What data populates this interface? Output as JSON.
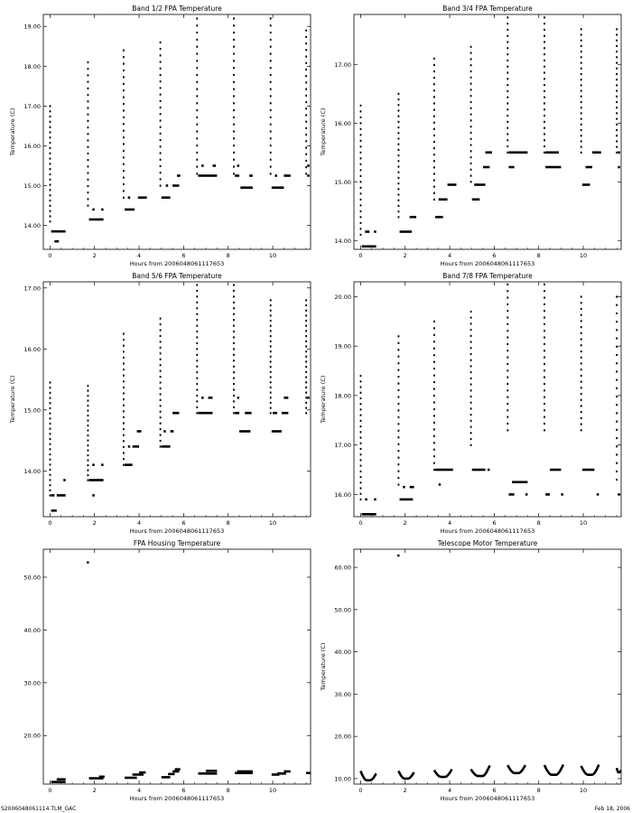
{
  "footer": {
    "left": "S2006048061114.TLM_GAC",
    "right": "Feb 18, 2006"
  },
  "chart_data": [
    {
      "type": "scatter",
      "title": "Band 1/2 FPA Temperature",
      "xlabel": "Hours from 2006048061117653",
      "ylabel": "Temperature (C)",
      "xlim": [
        -0.3,
        11.7
      ],
      "ylim": [
        13.4,
        19.3
      ],
      "xticks": [
        0,
        2,
        4,
        6,
        8,
        10
      ],
      "yticks": [
        14.0,
        15.0,
        16.0,
        17.0,
        18.0,
        19.0
      ],
      "ytick_labels": [
        "14.00",
        "15.00",
        "16.00",
        "17.00",
        "18.00",
        "19.00"
      ],
      "bursts": [
        {
          "x0": 0.0,
          "x1": 0.05,
          "y0": 14.1,
          "y1": 17.0
        },
        {
          "x0": 1.7,
          "x1": 1.75,
          "y0": 14.5,
          "y1": 18.1
        },
        {
          "x0": 3.3,
          "x1": 3.35,
          "y0": 14.7,
          "y1": 18.4
        },
        {
          "x0": 4.95,
          "x1": 5.0,
          "y0": 15.0,
          "y1": 18.6
        },
        {
          "x0": 6.6,
          "x1": 6.65,
          "y0": 15.3,
          "y1": 19.2
        },
        {
          "x0": 8.25,
          "x1": 8.3,
          "y0": 15.3,
          "y1": 19.2
        },
        {
          "x0": 9.9,
          "x1": 9.95,
          "y0": 15.3,
          "y1": 19.2
        },
        {
          "x0": 11.5,
          "x1": 11.55,
          "y0": 15.3,
          "y1": 18.9
        }
      ],
      "segments": [
        {
          "x0": 0.05,
          "x1": 0.7,
          "y": 13.85
        },
        {
          "x0": 0.2,
          "x1": 0.4,
          "y": 13.6
        },
        {
          "x0": 1.75,
          "x1": 2.4,
          "y": 14.15
        },
        {
          "x0": 1.9,
          "x1": 2.0,
          "y": 14.4
        },
        {
          "x0": 2.3,
          "x1": 2.4,
          "y": 14.4
        },
        {
          "x0": 3.35,
          "x1": 3.8,
          "y": 14.4
        },
        {
          "x0": 3.5,
          "x1": 3.6,
          "y": 14.7
        },
        {
          "x0": 3.95,
          "x1": 4.35,
          "y": 14.7
        },
        {
          "x0": 5.0,
          "x1": 5.4,
          "y": 14.7
        },
        {
          "x0": 5.2,
          "x1": 5.3,
          "y": 15.0
        },
        {
          "x0": 5.5,
          "x1": 5.8,
          "y": 15.0
        },
        {
          "x0": 5.7,
          "x1": 5.85,
          "y": 15.25
        },
        {
          "x0": 6.65,
          "x1": 7.5,
          "y": 15.25
        },
        {
          "x0": 6.8,
          "x1": 6.9,
          "y": 15.5
        },
        {
          "x0": 7.3,
          "x1": 7.45,
          "y": 15.5
        },
        {
          "x0": 8.3,
          "x1": 8.5,
          "y": 15.25
        },
        {
          "x0": 8.4,
          "x1": 8.5,
          "y": 15.5
        },
        {
          "x0": 8.55,
          "x1": 9.1,
          "y": 14.95
        },
        {
          "x0": 8.95,
          "x1": 9.1,
          "y": 15.25
        },
        {
          "x0": 9.95,
          "x1": 10.5,
          "y": 14.95
        },
        {
          "x0": 10.1,
          "x1": 10.2,
          "y": 15.25
        },
        {
          "x0": 10.5,
          "x1": 10.8,
          "y": 15.25
        },
        {
          "x0": 11.55,
          "x1": 11.65,
          "y": 15.25
        },
        {
          "x0": 11.55,
          "x1": 11.65,
          "y": 15.5
        }
      ]
    },
    {
      "type": "scatter",
      "title": "Band 3/4 FPA Temperature",
      "xlabel": "Hours from 2006048061117653",
      "ylabel": "Temperature (C)",
      "xlim": [
        -0.3,
        11.7
      ],
      "ylim": [
        13.85,
        17.85
      ],
      "xticks": [
        0,
        2,
        4,
        6,
        8,
        10
      ],
      "yticks": [
        14.0,
        15.0,
        16.0,
        17.0
      ],
      "ytick_labels": [
        "14.00",
        "15.00",
        "16.00",
        "17.00"
      ],
      "bursts": [
        {
          "x0": 0.0,
          "x1": 0.05,
          "y0": 14.1,
          "y1": 16.3
        },
        {
          "x0": 1.7,
          "x1": 1.75,
          "y0": 14.4,
          "y1": 16.5
        },
        {
          "x0": 3.3,
          "x1": 3.35,
          "y0": 14.7,
          "y1": 17.1
        },
        {
          "x0": 4.95,
          "x1": 5.0,
          "y0": 15.0,
          "y1": 17.3
        },
        {
          "x0": 6.6,
          "x1": 6.65,
          "y0": 15.5,
          "y1": 17.8
        },
        {
          "x0": 8.25,
          "x1": 8.3,
          "y0": 15.5,
          "y1": 17.8
        },
        {
          "x0": 9.9,
          "x1": 9.95,
          "y0": 15.5,
          "y1": 17.6
        },
        {
          "x0": 11.5,
          "x1": 11.55,
          "y0": 15.5,
          "y1": 17.6
        }
      ],
      "segments": [
        {
          "x0": 0.05,
          "x1": 0.7,
          "y": 13.9
        },
        {
          "x0": 0.2,
          "x1": 0.4,
          "y": 14.15
        },
        {
          "x0": 0.6,
          "x1": 0.7,
          "y": 14.15
        },
        {
          "x0": 1.75,
          "x1": 2.3,
          "y": 14.15
        },
        {
          "x0": 2.2,
          "x1": 2.5,
          "y": 14.4
        },
        {
          "x0": 3.35,
          "x1": 3.7,
          "y": 14.4
        },
        {
          "x0": 3.5,
          "x1": 3.9,
          "y": 14.7
        },
        {
          "x0": 3.9,
          "x1": 4.3,
          "y": 14.95
        },
        {
          "x0": 5.0,
          "x1": 5.35,
          "y": 14.7
        },
        {
          "x0": 5.1,
          "x1": 5.6,
          "y": 14.95
        },
        {
          "x0": 5.5,
          "x1": 5.8,
          "y": 15.25
        },
        {
          "x0": 5.6,
          "x1": 5.9,
          "y": 15.5
        },
        {
          "x0": 6.65,
          "x1": 6.9,
          "y": 15.25
        },
        {
          "x0": 6.65,
          "x1": 7.5,
          "y": 15.5
        },
        {
          "x0": 8.3,
          "x1": 9.0,
          "y": 15.25
        },
        {
          "x0": 8.3,
          "x1": 8.9,
          "y": 15.5
        },
        {
          "x0": 9.95,
          "x1": 10.3,
          "y": 14.95
        },
        {
          "x0": 10.1,
          "x1": 10.4,
          "y": 15.25
        },
        {
          "x0": 10.4,
          "x1": 10.8,
          "y": 15.5
        },
        {
          "x0": 11.55,
          "x1": 11.65,
          "y": 15.25
        },
        {
          "x0": 11.55,
          "x1": 11.65,
          "y": 15.5
        }
      ]
    },
    {
      "type": "scatter",
      "title": "Band 5/6 FPA Temperature",
      "xlabel": "Hours from 2006048061117653",
      "ylabel": "Temperature (C)",
      "xlim": [
        -0.3,
        11.7
      ],
      "ylim": [
        13.25,
        17.1
      ],
      "xticks": [
        0,
        2,
        4,
        6,
        8,
        10
      ],
      "yticks": [
        14.0,
        15.0,
        16.0,
        17.0
      ],
      "ytick_labels": [
        "14.00",
        "15.00",
        "16.00",
        "17.00"
      ],
      "bursts": [
        {
          "x0": 0.0,
          "x1": 0.05,
          "y0": 13.6,
          "y1": 15.45
        },
        {
          "x0": 1.7,
          "x1": 1.75,
          "y0": 13.85,
          "y1": 15.45
        },
        {
          "x0": 3.3,
          "x1": 3.35,
          "y0": 14.1,
          "y1": 16.25
        },
        {
          "x0": 4.95,
          "x1": 5.0,
          "y0": 14.4,
          "y1": 16.5
        },
        {
          "x0": 6.6,
          "x1": 6.65,
          "y0": 14.95,
          "y1": 17.05
        },
        {
          "x0": 8.25,
          "x1": 8.3,
          "y0": 14.95,
          "y1": 17.05
        },
        {
          "x0": 9.9,
          "x1": 9.95,
          "y0": 14.95,
          "y1": 16.8
        },
        {
          "x0": 11.5,
          "x1": 11.55,
          "y0": 14.95,
          "y1": 16.8
        }
      ],
      "segments": [
        {
          "x0": 0.05,
          "x1": 0.3,
          "y": 13.35
        },
        {
          "x0": 0.05,
          "x1": 0.2,
          "y": 13.6
        },
        {
          "x0": 0.3,
          "x1": 0.7,
          "y": 13.6
        },
        {
          "x0": 0.6,
          "x1": 0.7,
          "y": 13.85
        },
        {
          "x0": 1.75,
          "x1": 2.4,
          "y": 13.85
        },
        {
          "x0": 1.9,
          "x1": 2.0,
          "y": 13.6
        },
        {
          "x0": 2.3,
          "x1": 2.4,
          "y": 14.1
        },
        {
          "x0": 1.9,
          "x1": 2.0,
          "y": 14.1
        },
        {
          "x0": 3.35,
          "x1": 3.7,
          "y": 14.1
        },
        {
          "x0": 3.5,
          "x1": 3.6,
          "y": 14.4
        },
        {
          "x0": 3.7,
          "x1": 4.0,
          "y": 14.4
        },
        {
          "x0": 3.9,
          "x1": 4.1,
          "y": 14.65
        },
        {
          "x0": 5.0,
          "x1": 5.4,
          "y": 14.4
        },
        {
          "x0": 5.1,
          "x1": 5.2,
          "y": 14.65
        },
        {
          "x0": 5.4,
          "x1": 5.55,
          "y": 14.65
        },
        {
          "x0": 5.5,
          "x1": 5.8,
          "y": 14.95
        },
        {
          "x0": 6.65,
          "x1": 7.3,
          "y": 14.95
        },
        {
          "x0": 6.8,
          "x1": 6.9,
          "y": 15.2
        },
        {
          "x0": 7.1,
          "x1": 7.3,
          "y": 15.2
        },
        {
          "x0": 8.3,
          "x1": 8.5,
          "y": 14.95
        },
        {
          "x0": 8.4,
          "x1": 8.5,
          "y": 15.2
        },
        {
          "x0": 8.5,
          "x1": 9.0,
          "y": 14.65
        },
        {
          "x0": 8.75,
          "x1": 9.05,
          "y": 14.95
        },
        {
          "x0": 9.95,
          "x1": 10.4,
          "y": 14.65
        },
        {
          "x0": 10.0,
          "x1": 10.2,
          "y": 14.95
        },
        {
          "x0": 10.4,
          "x1": 10.7,
          "y": 14.95
        },
        {
          "x0": 10.5,
          "x1": 10.7,
          "y": 15.2
        },
        {
          "x0": 11.55,
          "x1": 11.65,
          "y": 15.2
        }
      ]
    },
    {
      "type": "scatter",
      "title": "Band 7/8 FPA Temperature",
      "xlabel": "Hours from 2006048061117653",
      "ylabel": "Temperature (C)",
      "xlim": [
        -0.3,
        11.7
      ],
      "ylim": [
        15.55,
        20.3
      ],
      "xticks": [
        0,
        2,
        4,
        6,
        8,
        10
      ],
      "yticks": [
        16.0,
        17.0,
        18.0,
        19.0,
        20.0
      ],
      "ytick_labels": [
        "16.00",
        "17.00",
        "18.00",
        "19.00",
        "20.00"
      ],
      "bursts": [
        {
          "x0": 0.0,
          "x1": 0.05,
          "y0": 15.9,
          "y1": 18.4
        },
        {
          "x0": 1.7,
          "x1": 1.75,
          "y0": 16.2,
          "y1": 19.2
        },
        {
          "x0": 3.3,
          "x1": 3.35,
          "y0": 16.5,
          "y1": 19.5
        },
        {
          "x0": 4.95,
          "x1": 5.0,
          "y0": 17.0,
          "y1": 19.7
        },
        {
          "x0": 6.6,
          "x1": 6.65,
          "y0": 17.3,
          "y1": 20.25
        },
        {
          "x0": 8.25,
          "x1": 8.3,
          "y0": 17.3,
          "y1": 20.25
        },
        {
          "x0": 9.9,
          "x1": 9.95,
          "y0": 17.3,
          "y1": 20.0
        },
        {
          "x0": 11.5,
          "x1": 11.55,
          "y0": 16.3,
          "y1": 20.0
        }
      ],
      "segments": [
        {
          "x0": 0.05,
          "x1": 0.7,
          "y": 15.6
        },
        {
          "x0": 0.2,
          "x1": 0.3,
          "y": 15.9
        },
        {
          "x0": 0.6,
          "x1": 0.7,
          "y": 15.9
        },
        {
          "x0": 1.75,
          "x1": 2.35,
          "y": 15.9
        },
        {
          "x0": 1.9,
          "x1": 2.0,
          "y": 16.15
        },
        {
          "x0": 2.2,
          "x1": 2.4,
          "y": 16.15
        },
        {
          "x0": 3.35,
          "x1": 4.15,
          "y": 16.5
        },
        {
          "x0": 3.5,
          "x1": 3.6,
          "y": 16.2
        },
        {
          "x0": 5.0,
          "x1": 5.6,
          "y": 16.5
        },
        {
          "x0": 5.7,
          "x1": 5.8,
          "y": 16.5
        },
        {
          "x0": 6.65,
          "x1": 6.9,
          "y": 16.0
        },
        {
          "x0": 6.8,
          "x1": 7.5,
          "y": 16.25
        },
        {
          "x0": 7.4,
          "x1": 7.5,
          "y": 16.0
        },
        {
          "x0": 8.3,
          "x1": 8.5,
          "y": 16.0
        },
        {
          "x0": 8.5,
          "x1": 9.0,
          "y": 16.5
        },
        {
          "x0": 9.0,
          "x1": 9.1,
          "y": 16.0
        },
        {
          "x0": 9.95,
          "x1": 10.5,
          "y": 16.5
        },
        {
          "x0": 10.6,
          "x1": 10.7,
          "y": 16.0
        },
        {
          "x0": 11.55,
          "x1": 11.65,
          "y": 16.0
        }
      ]
    },
    {
      "type": "scatter",
      "title": "FPA Housing Temperature",
      "xlabel": "Hours from 2006048061117653",
      "ylabel": "",
      "xlim": [
        -0.3,
        11.7
      ],
      "ylim": [
        10.8,
        55.3
      ],
      "xticks": [
        0,
        2,
        4,
        6,
        8,
        10
      ],
      "yticks": [
        20.0,
        30.0,
        40.0,
        50.0
      ],
      "ytick_labels": [
        "20.00",
        "30.00",
        "40.00",
        "50.00"
      ],
      "points": [
        {
          "x": 1.7,
          "y": 52.8
        }
      ],
      "segments": [
        {
          "x0": 0.05,
          "x1": 0.7,
          "y": 11.2
        },
        {
          "x0": 0.3,
          "x1": 0.7,
          "y": 11.7
        },
        {
          "x0": 1.75,
          "x1": 2.4,
          "y": 11.9
        },
        {
          "x0": 2.2,
          "x1": 2.45,
          "y": 12.2
        },
        {
          "x0": 3.35,
          "x1": 3.9,
          "y": 12.0
        },
        {
          "x0": 3.7,
          "x1": 4.2,
          "y": 12.6
        },
        {
          "x0": 4.0,
          "x1": 4.3,
          "y": 13.0
        },
        {
          "x0": 5.0,
          "x1": 5.4,
          "y": 12.1
        },
        {
          "x0": 5.3,
          "x1": 5.6,
          "y": 12.7
        },
        {
          "x0": 5.5,
          "x1": 5.8,
          "y": 13.2
        },
        {
          "x0": 5.6,
          "x1": 5.85,
          "y": 13.6
        },
        {
          "x0": 6.65,
          "x1": 7.5,
          "y": 12.8
        },
        {
          "x0": 7.0,
          "x1": 7.5,
          "y": 13.3
        },
        {
          "x0": 8.3,
          "x1": 9.1,
          "y": 12.9
        },
        {
          "x0": 8.4,
          "x1": 9.1,
          "y": 13.2
        },
        {
          "x0": 9.95,
          "x1": 10.3,
          "y": 12.6
        },
        {
          "x0": 10.2,
          "x1": 10.6,
          "y": 12.8
        },
        {
          "x0": 10.5,
          "x1": 10.8,
          "y": 13.2
        },
        {
          "x0": 11.5,
          "x1": 11.7,
          "y": 12.9
        }
      ]
    },
    {
      "type": "line",
      "title": "Telescope Motor Temperature",
      "xlabel": "Hours from 2006048061117653",
      "ylabel": "Temperature (C)",
      "xlim": [
        -0.3,
        11.7
      ],
      "ylim": [
        8.7,
        64.3
      ],
      "xticks": [
        0,
        2,
        4,
        6,
        8,
        10
      ],
      "yticks": [
        10.0,
        20.0,
        30.0,
        40.0,
        50.0,
        60.0
      ],
      "ytick_labels": [
        "10.00",
        "20.00",
        "30.00",
        "40.00",
        "50.00",
        "60.00"
      ],
      "points": [
        {
          "x": 1.7,
          "y": 62.8
        }
      ],
      "curves": [
        {
          "x0": 0.0,
          "x1": 0.7,
          "start": 11.8,
          "min": 9.6,
          "end": 11.2
        },
        {
          "x0": 1.7,
          "x1": 2.4,
          "start": 11.8,
          "min": 10.0,
          "end": 11.5
        },
        {
          "x0": 3.3,
          "x1": 4.1,
          "start": 12.0,
          "min": 10.4,
          "end": 12.2
        },
        {
          "x0": 4.95,
          "x1": 5.8,
          "start": 12.2,
          "min": 10.6,
          "end": 13.1
        },
        {
          "x0": 6.6,
          "x1": 7.4,
          "start": 13.2,
          "min": 11.3,
          "end": 13.2
        },
        {
          "x0": 8.25,
          "x1": 9.1,
          "start": 13.2,
          "min": 10.9,
          "end": 13.3
        },
        {
          "x0": 9.9,
          "x1": 10.7,
          "start": 13.0,
          "min": 10.9,
          "end": 13.3
        },
        {
          "x0": 11.5,
          "x1": 11.7,
          "start": 12.5,
          "min": 11.5,
          "end": 12.0
        }
      ]
    }
  ]
}
